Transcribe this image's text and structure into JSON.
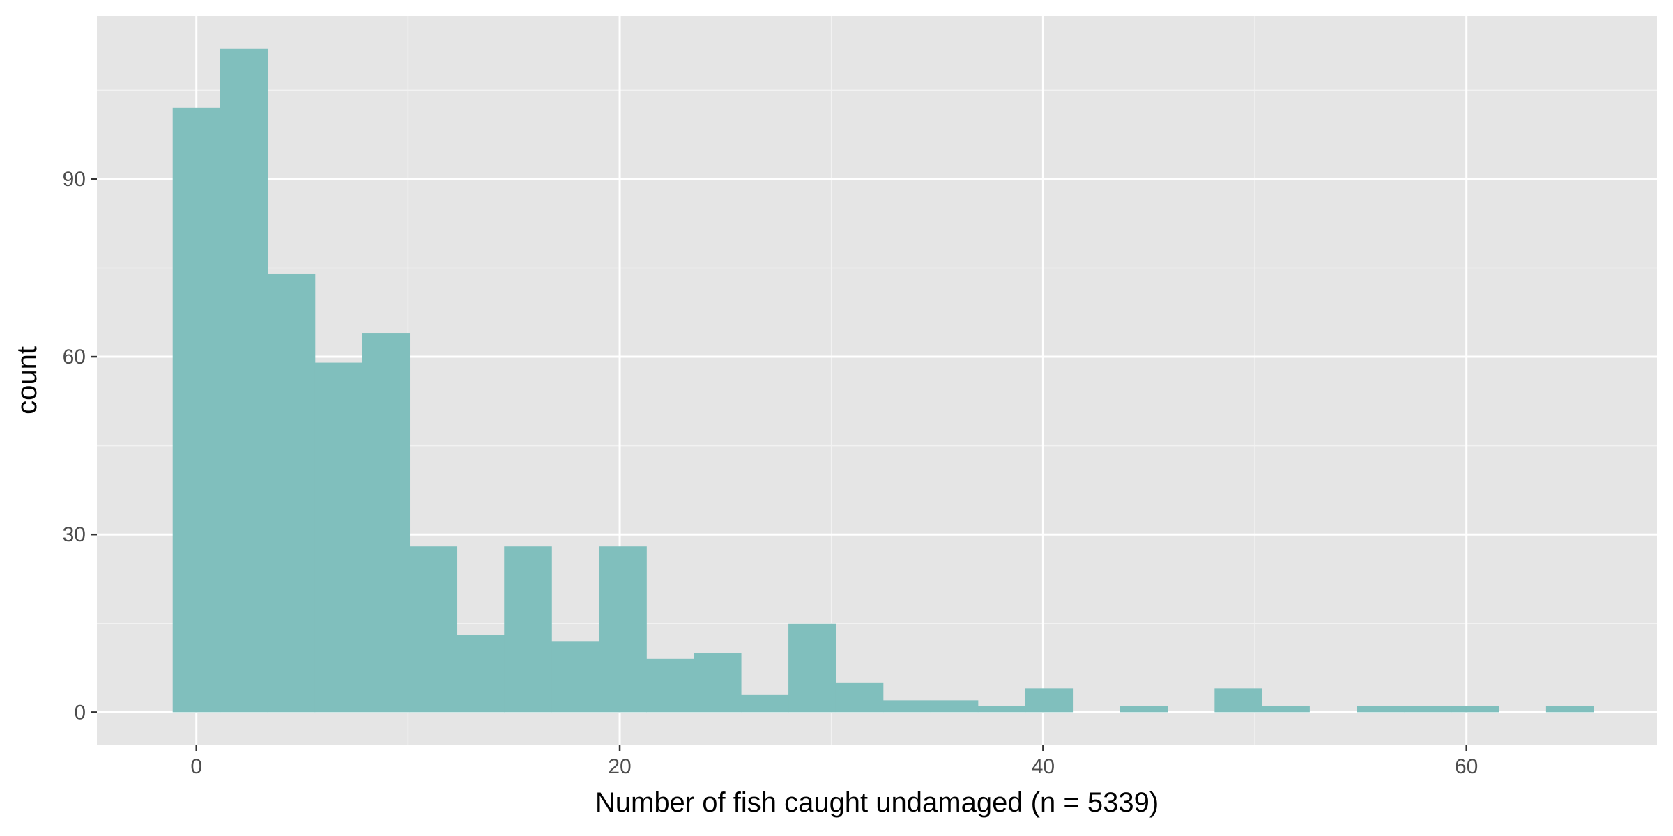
{
  "chart_data": {
    "type": "bar",
    "xlabel": "Number of fish caught undamaged (n = 5339)",
    "ylabel": "count",
    "xlim": [
      -4.7,
      69.0
    ],
    "ylim": [
      -5.6,
      117.5
    ],
    "x_ticks": [
      0,
      20,
      40,
      60
    ],
    "y_ticks": [
      0,
      30,
      60,
      90
    ],
    "x_tick_labels": [
      "0",
      "20",
      "40",
      "60"
    ],
    "y_tick_labels": [
      "0",
      "30",
      "60",
      "90"
    ],
    "bin_width": 2.237,
    "bins": [
      {
        "start": -1.12,
        "count": 102
      },
      {
        "start": 1.12,
        "count": 112
      },
      {
        "start": 3.36,
        "count": 74
      },
      {
        "start": 5.59,
        "count": 59
      },
      {
        "start": 7.83,
        "count": 64
      },
      {
        "start": 10.07,
        "count": 28
      },
      {
        "start": 12.31,
        "count": 13
      },
      {
        "start": 14.54,
        "count": 28
      },
      {
        "start": 16.78,
        "count": 12
      },
      {
        "start": 19.02,
        "count": 28
      },
      {
        "start": 21.25,
        "count": 9
      },
      {
        "start": 23.49,
        "count": 10
      },
      {
        "start": 25.73,
        "count": 3
      },
      {
        "start": 27.97,
        "count": 15
      },
      {
        "start": 30.2,
        "count": 5
      },
      {
        "start": 32.44,
        "count": 2
      },
      {
        "start": 34.68,
        "count": 2
      },
      {
        "start": 36.92,
        "count": 1
      },
      {
        "start": 39.15,
        "count": 4
      },
      {
        "start": 41.39,
        "count": 0
      },
      {
        "start": 43.63,
        "count": 1
      },
      {
        "start": 45.86,
        "count": 0
      },
      {
        "start": 48.1,
        "count": 4
      },
      {
        "start": 50.34,
        "count": 1
      },
      {
        "start": 52.58,
        "count": 0
      },
      {
        "start": 54.81,
        "count": 1
      },
      {
        "start": 57.05,
        "count": 1
      },
      {
        "start": 59.29,
        "count": 1
      },
      {
        "start": 61.53,
        "count": 0
      },
      {
        "start": 63.76,
        "count": 1
      }
    ],
    "bar_color": "#80bfbd",
    "panel_background": "#e5e5e5",
    "grid": true,
    "legend": "none"
  }
}
